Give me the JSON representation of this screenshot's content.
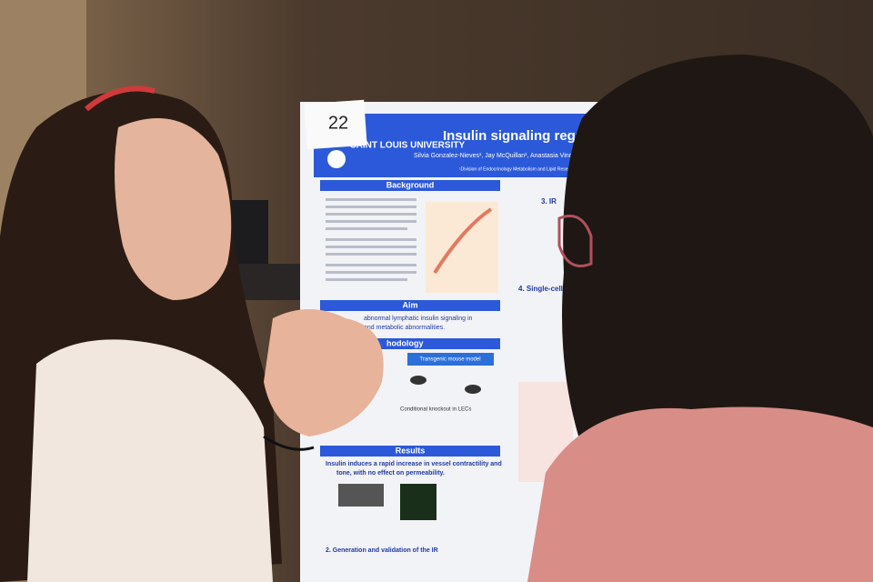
{
  "poster": {
    "number": "22",
    "university": "SAINT LOUIS UNIVERSITY",
    "title": "Insulin signaling regulato",
    "authors": "Silvia Gonzalez-Nieves¹, Jay McQuillan¹, Anastasia Vinog",
    "affiliation": "¹Division of Endocrinology Metabolism and Lipid Rese",
    "sections": {
      "background": "Background",
      "aim": "Aim",
      "aim_text": "abnormal lymphatic insulin signaling in",
      "aim_text_2": "and metabolic abnormalities.",
      "methodology": "hodology",
      "transgenic": "Transgenic mouse model",
      "knockout": "Conditional knockout in LECs",
      "results": "Results",
      "results_text": "Insulin induces a rapid increase in vessel contractility and",
      "results_text_2": "tone, with no effect on permeability.",
      "result_2": "2. Generation and validation of the IR",
      "right_3": "3. IR",
      "right_4": "4. Single-cell RNA"
    }
  }
}
